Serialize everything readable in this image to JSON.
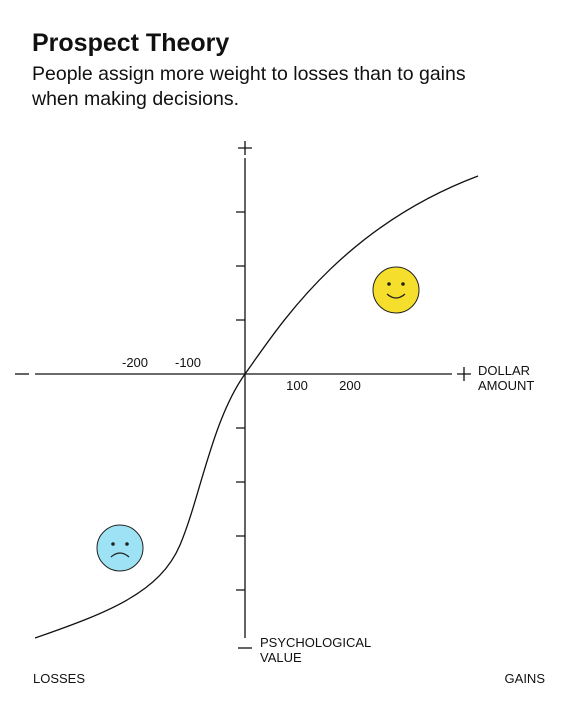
{
  "header": {
    "title": "Prospect Theory",
    "subtitle_lines": [
      "People assign more weight to losses than to gains",
      "when making decisions."
    ]
  },
  "x_axis": {
    "label_lines": [
      "DOLLAR",
      "AMOUNT"
    ],
    "tick_labels": [
      "-200",
      "-100",
      "100",
      "200"
    ]
  },
  "y_axis": {
    "label_lines": [
      "PSYCHOLOGICAL",
      "VALUE"
    ]
  },
  "corner_labels": {
    "left": "LOSSES",
    "right": "GAINS"
  }
}
